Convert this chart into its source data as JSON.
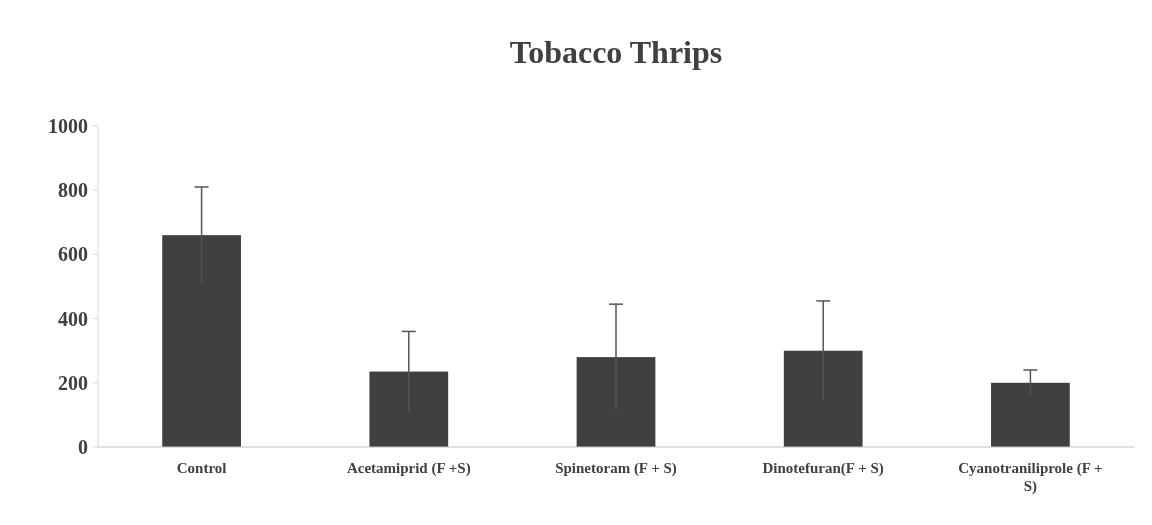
{
  "chart_data": {
    "type": "bar",
    "title": "Tobacco Thrips",
    "categories": [
      "Control",
      "Acetamiprid (F +S)",
      "Spinetoram (F + S)",
      "Dinotefuran(F + S)",
      "Cyanotraniliprole (F + S)"
    ],
    "values": [
      660,
      235,
      280,
      300,
      200
    ],
    "errors": [
      150,
      125,
      165,
      155,
      40
    ],
    "color": "#404040",
    "ylim": [
      0,
      1000
    ],
    "yticks": [
      0,
      200,
      400,
      600,
      800,
      1000
    ],
    "grid": false
  }
}
